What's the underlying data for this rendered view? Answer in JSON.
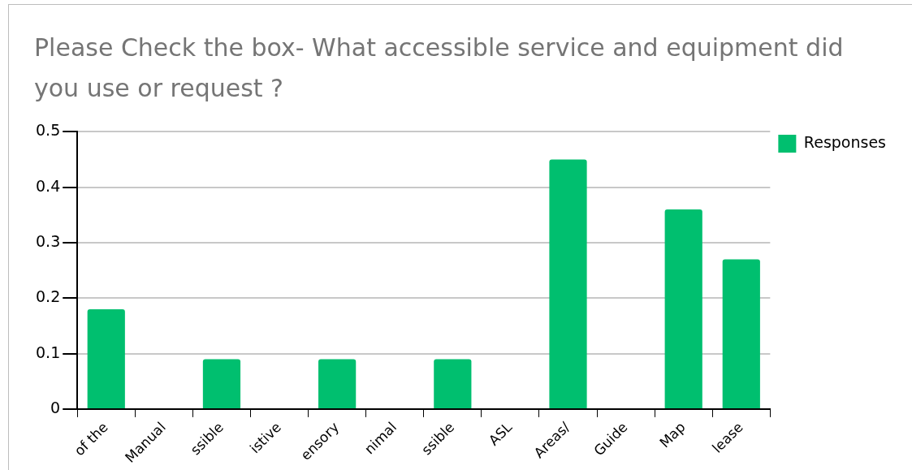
{
  "chart_data": {
    "type": "bar",
    "title": "Please Check the box- What accessible service and equipment did you use or request ?",
    "categories": [
      "of the",
      "Manual",
      "ssible",
      "istive",
      "ensory",
      "nimal",
      "ssible",
      "ASL",
      "Areas/",
      "Guide",
      "Map",
      "lease"
    ],
    "series": [
      {
        "name": "Responses",
        "color": "#00bf6f",
        "values": [
          0.18,
          0,
          0.09,
          0,
          0.09,
          0,
          0.09,
          0,
          0.45,
          0,
          0.36,
          0.27
        ]
      }
    ],
    "ylim": [
      0,
      0.5
    ],
    "yticks": [
      0,
      0.1,
      0.2,
      0.3,
      0.4,
      0.5
    ],
    "grid": "y",
    "legend": "top right"
  }
}
